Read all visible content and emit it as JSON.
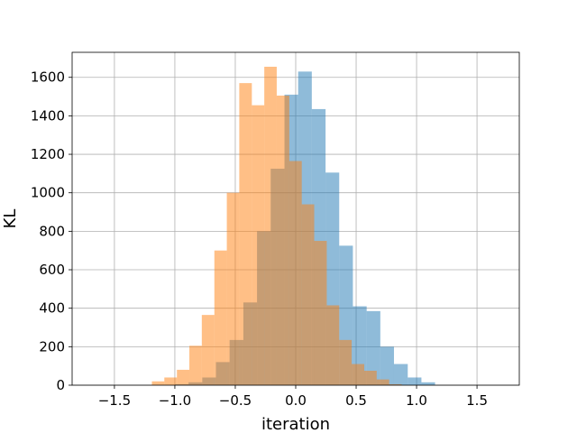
{
  "chart_data": {
    "type": "bar",
    "subtype": "histogram",
    "title": "",
    "xlabel": "iteration",
    "ylabel": "KL",
    "xlim": [
      -1.85,
      1.85
    ],
    "ylim": [
      0,
      1730
    ],
    "grid": true,
    "legend": "none",
    "xticks": [
      -1.5,
      -1.0,
      -0.5,
      0.0,
      0.5,
      1.0,
      1.5
    ],
    "xtick_labels": [
      "−1.5",
      "−1.0",
      "−0.5",
      "0.0",
      "0.5",
      "1.0",
      "1.5"
    ],
    "yticks": [
      0,
      200,
      400,
      600,
      800,
      1000,
      1200,
      1400,
      1600
    ],
    "ytick_labels": [
      "0",
      "200",
      "400",
      "600",
      "800",
      "1000",
      "1200",
      "1400",
      "1600"
    ],
    "series": [
      {
        "color": "#1f77b4",
        "opacity": 0.5,
        "bin_edges": [
          -1.0,
          -0.887,
          -0.773,
          -0.66,
          -0.547,
          -0.433,
          -0.32,
          -0.207,
          -0.093,
          0.02,
          0.133,
          0.247,
          0.36,
          0.473,
          0.587,
          0.7,
          0.813,
          0.927,
          1.04,
          1.153
        ],
        "values": [
          5,
          15,
          40,
          120,
          235,
          430,
          800,
          1125,
          1510,
          1630,
          1435,
          1105,
          725,
          410,
          385,
          200,
          110,
          40,
          15
        ]
      },
      {
        "color": "#ff7f0e",
        "opacity": 0.5,
        "bin_edges": [
          -1.19,
          -1.087,
          -0.983,
          -0.88,
          -0.777,
          -0.673,
          -0.57,
          -0.467,
          -0.363,
          -0.26,
          -0.157,
          -0.053,
          0.05,
          0.153,
          0.257,
          0.36,
          0.463,
          0.567,
          0.67,
          0.773,
          0.877
        ],
        "values": [
          20,
          40,
          80,
          205,
          365,
          700,
          1000,
          1570,
          1455,
          1655,
          1505,
          1165,
          940,
          750,
          415,
          235,
          110,
          75,
          30,
          5
        ]
      }
    ]
  }
}
